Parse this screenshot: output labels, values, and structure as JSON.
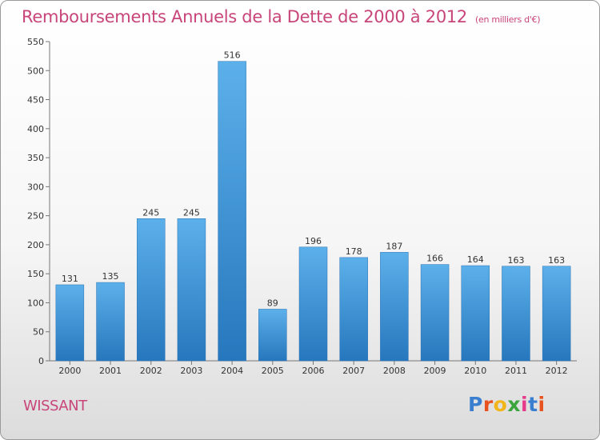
{
  "chart_data": {
    "type": "bar",
    "title": "Remboursements Annuels de la Dette de 2000 à 2012",
    "unit_note": "(en milliers d'€)",
    "categories": [
      "2000",
      "2001",
      "2002",
      "2003",
      "2004",
      "2005",
      "2006",
      "2007",
      "2008",
      "2009",
      "2010",
      "2011",
      "2012"
    ],
    "values": [
      131,
      135,
      245,
      245,
      516,
      89,
      196,
      178,
      187,
      166,
      164,
      163,
      163
    ],
    "ylim": [
      0,
      550
    ],
    "yticks": [
      0,
      50,
      100,
      150,
      200,
      250,
      300,
      350,
      400,
      450,
      500,
      550
    ],
    "grid": false,
    "bar_color": "#3d95d8"
  },
  "commune": "WISSANT",
  "logo": {
    "letters": [
      "P",
      "r",
      "o",
      "x",
      "i",
      "t",
      "i"
    ],
    "colors": [
      "#3a7fcf",
      "#e8521e",
      "#f2b51a",
      "#3aa53a",
      "#e63a8a",
      "#3a7fcf",
      "#e8521e"
    ]
  }
}
